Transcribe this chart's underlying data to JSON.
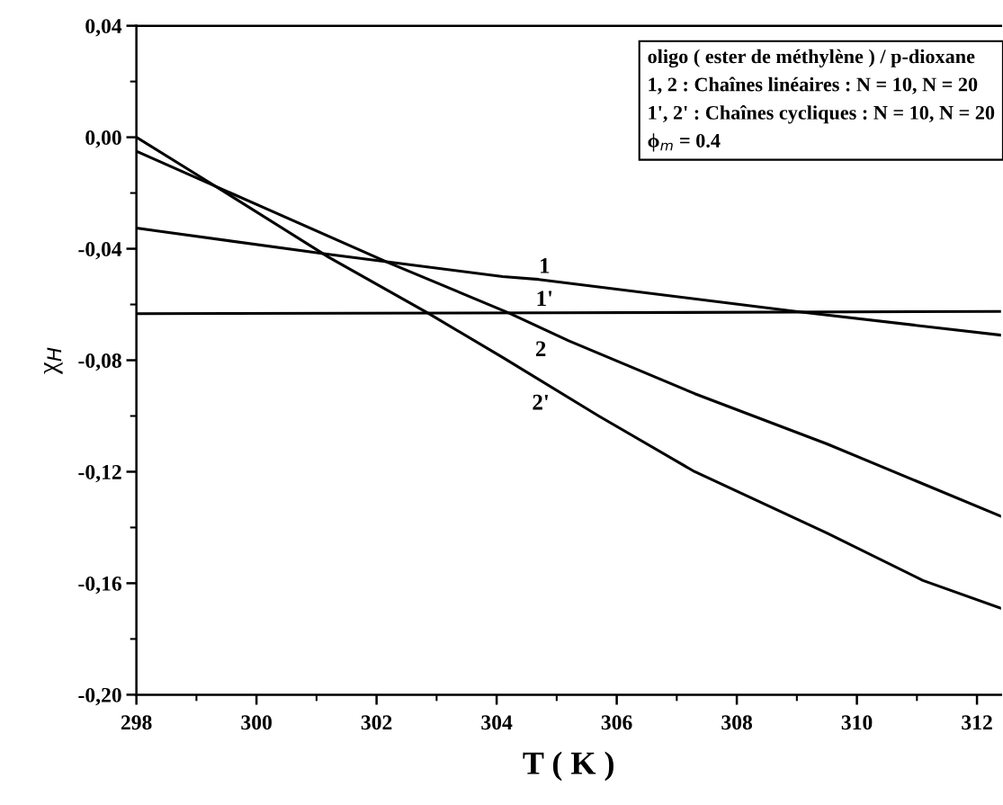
{
  "chart_data": {
    "type": "line",
    "xlabel": "T ( K )",
    "ylabel": "χ$_{H}$",
    "xlim": [
      298,
      312.4
    ],
    "xticks": [
      298,
      300,
      302,
      304,
      306,
      308,
      310,
      312
    ],
    "ylim": [
      -0.2,
      0.04
    ],
    "yticks": [
      {
        "value": 0.04,
        "label": "0,04"
      },
      {
        "value": 0.0,
        "label": "0,00"
      },
      {
        "value": -0.04,
        "label": "-0,04"
      },
      {
        "value": -0.08,
        "label": "-0,08"
      },
      {
        "value": -0.12,
        "label": "-0,12"
      },
      {
        "value": -0.16,
        "label": "-0,16"
      },
      {
        "value": -0.2,
        "label": "-0,20"
      }
    ],
    "grid": false,
    "legend": false,
    "marker": "none",
    "line_style": "solid",
    "series": [
      {
        "name": "1",
        "color": "#000000",
        "x": [
          298,
          301.2,
          304.1,
          304.7,
          308.95,
          312.4
        ],
        "values": [
          -0.0326,
          -0.042,
          -0.05,
          -0.051,
          -0.0624,
          -0.071
        ]
      },
      {
        "name": "1'",
        "color": "#000000",
        "x": [
          298,
          305,
          312.4
        ],
        "values": [
          -0.0633,
          -0.063,
          -0.0625
        ]
      },
      {
        "name": "2",
        "color": "#000000",
        "x": [
          298,
          300.2,
          302.2,
          304.2,
          305.2,
          307.3,
          309.5,
          312.4
        ],
        "values": [
          -0.005,
          -0.026,
          -0.045,
          -0.063,
          -0.073,
          -0.092,
          -0.11,
          -0.136
        ]
      },
      {
        "name": "2'",
        "color": "#000000",
        "x": [
          298,
          299.2,
          301.2,
          302.85,
          304.1,
          305.7,
          307.3,
          309.5,
          311.1,
          312.4
        ],
        "values": [
          0.0,
          -0.016,
          -0.043,
          -0.063,
          -0.079,
          -0.1,
          -0.12,
          -0.142,
          -0.159,
          -0.169
        ]
      }
    ],
    "annotations": [
      "oligo ( ester de méthylène ) / p-dioxane\n1, 2 : Chaînes linéaires : N = 10, N = 20\n1', 2' : Chaînes cycliques : N = 10, N = 20\nϕ$_{m}$ = 0.4"
    ]
  }
}
